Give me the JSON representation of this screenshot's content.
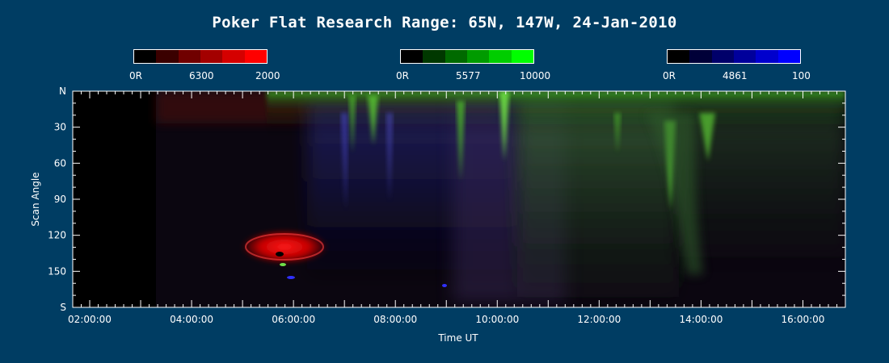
{
  "title": "Poker Flat Research Range: 65N, 147W, 24-Jan-2010",
  "legends": [
    {
      "name": "6300",
      "min_label": "0R",
      "mid_label": "6300",
      "max_label": "2000",
      "colors": [
        "#000000",
        "#3a0000",
        "#700000",
        "#a30000",
        "#d50000",
        "#ff0000"
      ]
    },
    {
      "name": "5577",
      "min_label": "0R",
      "mid_label": "5577",
      "max_label": "10000",
      "colors": [
        "#000000",
        "#003800",
        "#006a00",
        "#009b00",
        "#00cd00",
        "#00ff00"
      ]
    },
    {
      "name": "4861",
      "min_label": "0R",
      "mid_label": "4861",
      "max_label": "100",
      "colors": [
        "#000000",
        "#000038",
        "#00006a",
        "#00009b",
        "#0000cd",
        "#0000ff"
      ]
    }
  ],
  "chart_data": {
    "type": "heatmap",
    "title": "Poker Flat Research Range: 65N, 147W, 24-Jan-2010",
    "xlabel": "Time UT",
    "ylabel": "Scan Angle",
    "x_ticks": [
      "02:00:00",
      "04:00:00",
      "06:00:00",
      "08:00:00",
      "10:00:00",
      "12:00:00",
      "14:00:00",
      "16:00:00"
    ],
    "y_ticks": [
      "N",
      "30",
      "60",
      "90",
      "120",
      "150",
      "S"
    ],
    "x_range": [
      "01:40:00",
      "16:50:00"
    ],
    "y_range": [
      0,
      180
    ],
    "data_start": "03:10:00",
    "features": [
      {
        "channel": "5577",
        "time": "07:00:00",
        "scan_angle_range": [
          0,
          30
        ]
      },
      {
        "channel": "5577",
        "time": "09:50:00",
        "scan_angle_range": [
          0,
          20
        ]
      },
      {
        "channel": "5577",
        "time": "13:20:00",
        "scan_angle_range": [
          20,
          100
        ]
      },
      {
        "channel": "6300",
        "time": "05:35:00",
        "scan_angle_range": [
          115,
          140
        ]
      }
    ]
  }
}
